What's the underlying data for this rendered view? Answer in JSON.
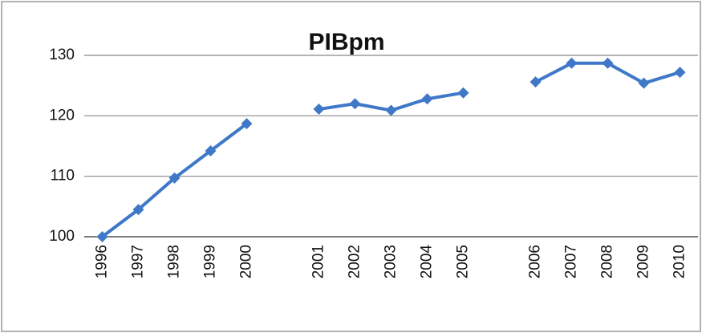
{
  "chart_data": {
    "type": "line",
    "title": "PIBpm",
    "categories": [
      "1996",
      "1997",
      "1998",
      "1999",
      "2000",
      null,
      "2001",
      "2002",
      "2003",
      "2004",
      "2005",
      null,
      "2006",
      "2007",
      "2008",
      "2009",
      "2010"
    ],
    "series": [
      {
        "name": "PIBpm",
        "color": "#3f78c8",
        "values": [
          100,
          104.5,
          109.7,
          114.2,
          118.7,
          null,
          121.1,
          122,
          120.9,
          122.8,
          123.8,
          null,
          125.6,
          128.7,
          128.7,
          125.4,
          127.2
        ]
      }
    ],
    "ylim": [
      100,
      130
    ],
    "yticks": [
      100,
      110,
      120,
      130
    ],
    "grid": true
  }
}
